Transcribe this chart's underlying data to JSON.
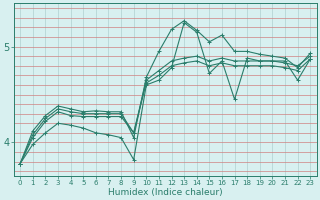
{
  "xlabel": "Humidex (Indice chaleur)",
  "x_values": [
    0,
    1,
    2,
    3,
    4,
    5,
    6,
    7,
    8,
    9,
    10,
    11,
    12,
    13,
    14,
    15,
    16,
    17,
    18,
    19,
    20,
    21,
    22,
    23
  ],
  "line1": [
    3.78,
    4.12,
    4.28,
    4.38,
    4.35,
    4.32,
    4.33,
    4.32,
    4.32,
    4.05,
    4.68,
    4.95,
    5.18,
    5.27,
    5.17,
    5.05,
    5.12,
    4.95,
    4.95,
    4.92,
    4.9,
    4.88,
    4.78,
    4.93
  ],
  "line2": [
    3.78,
    4.08,
    4.25,
    4.35,
    4.32,
    4.3,
    4.3,
    4.3,
    4.3,
    4.1,
    4.65,
    4.75,
    4.85,
    4.88,
    4.9,
    4.85,
    4.88,
    4.85,
    4.85,
    4.85,
    4.85,
    4.83,
    4.8,
    4.9
  ],
  "line3": [
    3.78,
    4.05,
    4.22,
    4.32,
    4.28,
    4.27,
    4.27,
    4.27,
    4.27,
    4.1,
    4.62,
    4.7,
    4.8,
    4.83,
    4.85,
    4.8,
    4.83,
    4.8,
    4.8,
    4.8,
    4.8,
    4.78,
    4.75,
    4.87
  ],
  "line4": [
    3.78,
    3.98,
    4.1,
    4.2,
    4.18,
    4.15,
    4.1,
    4.08,
    4.05,
    3.82,
    4.6,
    4.65,
    4.78,
    5.25,
    5.15,
    4.72,
    4.85,
    4.45,
    4.88,
    4.85,
    4.85,
    4.85,
    4.65,
    4.87
  ],
  "line_color": "#2a7d6b",
  "bg_color": "#d8f0f0",
  "grid_color_h": "#e8a8a8",
  "grid_color_v": "#b0d0d0",
  "ylim": [
    3.65,
    5.45
  ],
  "yticks": [
    4.0,
    5.0
  ],
  "xlim": [
    -0.5,
    23.5
  ],
  "marker": "+",
  "markersize": 3,
  "linewidth": 0.8
}
